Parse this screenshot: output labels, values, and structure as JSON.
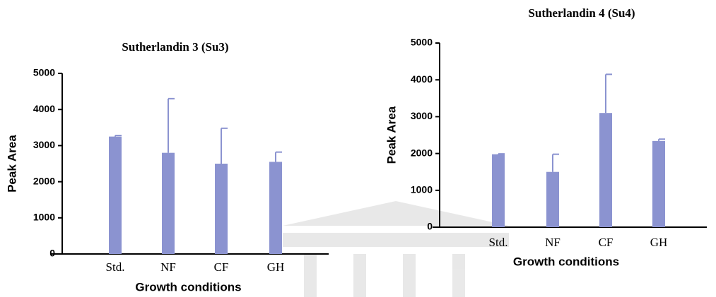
{
  "chart_data": [
    {
      "type": "bar",
      "title": "Sutherlandin 3 (Su3)",
      "x_label": "Growth conditions",
      "y_label": "Peak Area",
      "categories": [
        "Std.",
        "NF",
        "CF",
        "GH"
      ],
      "values": [
        3250,
        2800,
        2500,
        2550
      ],
      "errors": [
        30,
        1500,
        980,
        270
      ],
      "color": "#8b93d0",
      "ylim": [
        0,
        5000
      ],
      "yticks": [
        0,
        1000,
        2000,
        3000,
        4000,
        5000
      ]
    },
    {
      "type": "bar",
      "title": "Sutherlandin 4 (Su4)",
      "x_label": "Growth conditions",
      "y_label": "Peak Area",
      "categories": [
        "Std.",
        "NF",
        "CF",
        "GH"
      ],
      "values": [
        1980,
        1500,
        3100,
        2340
      ],
      "errors": [
        10,
        480,
        1050,
        50
      ],
      "color": "#8b93d0",
      "ylim": [
        0,
        5000
      ],
      "yticks": [
        0,
        1000,
        2000,
        3000,
        4000,
        5000
      ]
    }
  ]
}
